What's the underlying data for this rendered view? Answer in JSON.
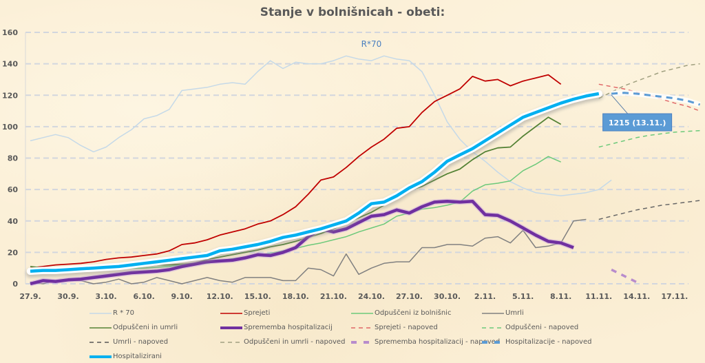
{
  "chart_data": {
    "type": "line",
    "title": "Stanje v bolnišnicah - obeti:",
    "xlabel": "",
    "ylabel": "",
    "ylim": [
      0,
      160
    ],
    "yticks": [
      0,
      20,
      40,
      60,
      80,
      100,
      120,
      140,
      160
    ],
    "ytick_labels": [
      "0",
      "20",
      "40",
      "60",
      "80",
      "100",
      "120",
      "140",
      "160"
    ],
    "grid": "horizontal-dashed",
    "legend_position": "bottom",
    "x_start_label": "27.9.",
    "x_days": 52,
    "xtick_labels": [
      "27.9.",
      "30.9.",
      "3.10.",
      "6.10.",
      "9.10.",
      "12.10.",
      "15.10.",
      "18.10.",
      "21.10.",
      "24.10.",
      "27.10.",
      "30.10.",
      "2.11.",
      "5.11.",
      "8.11.",
      "11.11.",
      "14.11.",
      "17.11."
    ],
    "xtick_step_days": 3,
    "annotations": [
      {
        "text": "R*70",
        "day": 27,
        "value": 150,
        "color": "#4a7fc0"
      },
      {
        "text": "1215  (13.11.)",
        "day": 47.5,
        "value": 103,
        "anchor_day": 46,
        "anchor_value": 121,
        "box_color": "#5b9bd5"
      }
    ],
    "series": [
      {
        "name": "R * 70",
        "color": "#c5d9e8",
        "width": 1.5,
        "dash": "",
        "start_day": 0,
        "values": [
          91,
          93,
          95,
          93,
          88,
          84,
          87,
          93,
          98,
          105,
          107,
          111,
          123,
          124,
          125,
          127,
          128,
          127,
          135,
          142,
          137,
          141,
          140,
          140,
          142,
          145,
          143,
          142,
          145,
          143,
          142,
          135,
          120,
          103,
          92,
          84,
          78,
          71,
          65,
          61,
          58,
          57,
          56,
          57,
          58,
          60,
          66
        ]
      },
      {
        "name": "Sprejeti",
        "color": "#c00000",
        "width": 1.8,
        "dash": "",
        "start_day": 0,
        "values": [
          10,
          11,
          12,
          12.5,
          13,
          14,
          15.5,
          16.5,
          17,
          18,
          19,
          21,
          25,
          26,
          28,
          31,
          33,
          35,
          38,
          40,
          44,
          49,
          57,
          66,
          68,
          74,
          81,
          87,
          92,
          99,
          100,
          109,
          116,
          120,
          124,
          132,
          129,
          130,
          126,
          129,
          131,
          133,
          127
        ]
      },
      {
        "name": "Odpuščeni iz bolnišnic",
        "color": "#6cc97a",
        "width": 1.5,
        "dash": "",
        "start_day": 0,
        "values": [
          10,
          9,
          9,
          9,
          9,
          8.5,
          9,
          9.5,
          10,
          10,
          10.5,
          11,
          12,
          12.5,
          13,
          14.5,
          16,
          17,
          18,
          19.5,
          21,
          22.5,
          24.5,
          26,
          28,
          30,
          33,
          35.5,
          38,
          43,
          45,
          47.5,
          48.5,
          50,
          52,
          59,
          63,
          64,
          65.5,
          72,
          76,
          81,
          77.5
        ]
      },
      {
        "name": "Umrli",
        "color": "#808080",
        "width": 1.5,
        "dash": "",
        "start_day": 0,
        "values": [
          1,
          0,
          2,
          2,
          2,
          0,
          1,
          3,
          0,
          1,
          4,
          2,
          0,
          2,
          4,
          2,
          1,
          4,
          4,
          4,
          2,
          2,
          10,
          9,
          5,
          19,
          6,
          10,
          13,
          14,
          14,
          23,
          23,
          25,
          25,
          24,
          29,
          30,
          26,
          34,
          23,
          24,
          26,
          40,
          41
        ]
      },
      {
        "name": "Odpuščeni in umrli",
        "color": "#548235",
        "width": 1.8,
        "dash": "",
        "start_day": 0,
        "values": [
          11,
          10,
          10,
          9,
          9,
          9,
          10,
          10,
          11,
          11,
          12,
          12,
          12.5,
          13,
          15.5,
          17,
          18.5,
          20,
          21.5,
          23.5,
          25,
          27,
          29.5,
          32,
          35,
          39,
          42,
          45.5,
          50,
          55,
          59.5,
          62,
          66,
          70,
          73,
          79,
          84,
          86.5,
          87,
          94,
          100,
          106,
          101.5
        ]
      },
      {
        "name": "Sprememba hospitalizacij",
        "color": "#7030a0",
        "width": 4.5,
        "dash": "",
        "start_day": 0,
        "values": [
          0,
          2,
          1.5,
          2.5,
          3,
          4,
          5,
          6,
          7,
          7.5,
          8,
          9,
          11,
          12.5,
          14,
          14.5,
          15,
          16.5,
          18.5,
          18,
          20,
          23,
          30,
          35,
          33,
          35,
          39,
          43,
          44,
          47,
          45,
          49,
          52,
          52.5,
          52,
          52.5,
          44,
          43.5,
          40,
          35.5,
          31,
          27,
          26,
          23
        ]
      },
      {
        "name": "Hospitalizirani",
        "color": "#00b0f0",
        "width": 4.5,
        "dash": "",
        "glow": true,
        "start_day": 0,
        "values": [
          8,
          8.5,
          8.5,
          9,
          9.5,
          10,
          10.5,
          11,
          12,
          13,
          14,
          15,
          16,
          17,
          18,
          21,
          22,
          23.5,
          25,
          27,
          29.5,
          31,
          33,
          35,
          37.5,
          40,
          45,
          51,
          52,
          56,
          61,
          65,
          71,
          78,
          82,
          86,
          91,
          96,
          101,
          106,
          109,
          112,
          115,
          117.5,
          119.5,
          121
        ]
      },
      {
        "name": "Sprejeti - napoved",
        "color": "#e06666",
        "width": 1.5,
        "dash": "6,5",
        "start_day": 45,
        "values": [
          127,
          125.5,
          124,
          122,
          120,
          117.5,
          115,
          113,
          110
        ]
      },
      {
        "name": "Odpuščeni - napoved",
        "color": "#6cc97a",
        "width": 1.5,
        "dash": "6,5",
        "start_day": 45,
        "values": [
          87,
          89,
          91,
          93,
          94.5,
          95.5,
          96.5,
          97,
          97.5
        ]
      },
      {
        "name": "Umrli - napoved",
        "color": "#666666",
        "width": 1.5,
        "dash": "6,5",
        "start_day": 45,
        "values": [
          41,
          43,
          45,
          47,
          48.5,
          50,
          51,
          52,
          53
        ]
      },
      {
        "name": "Odpuščeni in umrli - napoved",
        "color": "#a0a080",
        "width": 1.5,
        "dash": "6,5",
        "start_day": 45,
        "values": [
          118,
          122,
          126,
          129,
          132,
          135,
          137,
          139,
          140
        ]
      },
      {
        "name": "Sprememba hospitalizacij - napoved",
        "color": "#b88ccc",
        "width": 3.5,
        "dash": "8,8",
        "start_day": 46,
        "values": [
          9,
          5,
          1
        ]
      },
      {
        "name": "Hospitalizacije - napoved",
        "color": "#5b9bd5",
        "width": 3,
        "dash": "9,7",
        "start_day": 46,
        "values": [
          121,
          121.5,
          121,
          120,
          119,
          118,
          116.5,
          114
        ]
      }
    ]
  },
  "legend": [
    {
      "label": "R * 70",
      "style": "solid-thin",
      "color": "#c5d9e8"
    },
    {
      "label": "Sprejeti",
      "style": "solid-thin",
      "color": "#c00000"
    },
    {
      "label": "Odpuščeni iz bolnišnic",
      "style": "solid-thin",
      "color": "#6cc97a"
    },
    {
      "label": "Umrli",
      "style": "solid-thin",
      "color": "#808080"
    },
    {
      "label": "Odpuščeni in umrli",
      "style": "solid-thin",
      "color": "#548235"
    },
    {
      "label": "Sprememba hospitalizacij",
      "style": "solid-thick",
      "color": "#7030a0"
    },
    {
      "label": "Sprejeti - napoved",
      "style": "dash-thin",
      "color": "#e06666"
    },
    {
      "label": "Odpuščeni - napoved",
      "style": "dash-thin",
      "color": "#6cc97a"
    },
    {
      "label": "Umrli - napoved",
      "style": "dash-thin",
      "color": "#555555"
    },
    {
      "label": "Odpuščeni in umrli - napoved",
      "style": "dash-thin",
      "color": "#a0a080"
    },
    {
      "label": "Sprememba hospitalizacij - napoved",
      "style": "dash-thick",
      "color": "#b88ccc"
    },
    {
      "label": "Hospitalizacije - napoved",
      "style": "dash-thick",
      "color": "#5b9bd5"
    },
    {
      "label": "Hospitalizirani",
      "style": "solid-thick",
      "color": "#00b0f0"
    }
  ]
}
